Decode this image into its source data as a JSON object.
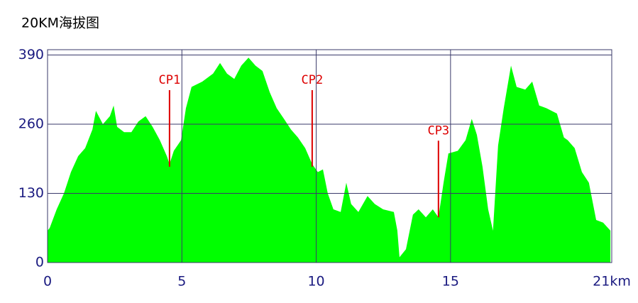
{
  "chart_data": {
    "type": "area",
    "title": "20KM海拔图",
    "x": [
      0,
      0.08,
      0.34,
      0.61,
      0.87,
      1.14,
      1.4,
      1.67,
      1.8,
      2.06,
      2.32,
      2.46,
      2.59,
      2.85,
      3.12,
      3.38,
      3.65,
      3.91,
      4.18,
      4.44,
      4.54,
      4.7,
      4.97,
      5.15,
      5.36,
      5.76,
      6.16,
      6.42,
      6.68,
      6.95,
      7.21,
      7.48,
      7.74,
      8.0,
      8.27,
      8.53,
      8.8,
      9.06,
      9.32,
      9.59,
      9.85,
      10.06,
      10.25,
      10.43,
      10.64,
      10.91,
      11.12,
      11.3,
      11.57,
      11.91,
      12.18,
      12.49,
      12.89,
      13.02,
      13.1,
      13.34,
      13.6,
      13.81,
      14.08,
      14.34,
      14.55,
      14.74,
      14.92,
      15.27,
      15.56,
      15.79,
      15.98,
      16.19,
      16.4,
      16.58,
      16.77,
      16.98,
      17.25,
      17.46,
      17.78,
      18.04,
      18.3,
      18.57,
      18.96,
      19.22,
      19.36,
      19.62,
      19.89,
      20.15,
      20.42,
      20.68,
      20.95
    ],
    "values": [
      60,
      65,
      100,
      130,
      170,
      200,
      215,
      250,
      285,
      260,
      275,
      295,
      255,
      245,
      245,
      265,
      275,
      255,
      230,
      200,
      185,
      210,
      230,
      290,
      330,
      340,
      355,
      375,
      355,
      345,
      370,
      385,
      370,
      360,
      320,
      290,
      270,
      250,
      235,
      215,
      185,
      170,
      175,
      130,
      100,
      95,
      150,
      110,
      95,
      125,
      110,
      100,
      95,
      60,
      10,
      25,
      90,
      100,
      85,
      100,
      85,
      150,
      205,
      210,
      230,
      270,
      240,
      180,
      100,
      60,
      220,
      290,
      370,
      330,
      325,
      340,
      295,
      290,
      280,
      235,
      230,
      215,
      170,
      150,
      80,
      75,
      60
    ],
    "color": "#00ff00",
    "xlim": [
      0,
      21
    ],
    "xticks": [
      0,
      5,
      10,
      15,
      {
        "value": 21,
        "label": "21km"
      }
    ],
    "ylim": [
      0,
      400
    ],
    "yticks": [
      0,
      130,
      260,
      390
    ],
    "grid": true,
    "annotations": [
      {
        "label": "CP1",
        "x": 4.54,
        "y": 180,
        "color": "#dd0000"
      },
      {
        "label": "CP2",
        "x": 9.85,
        "y": 180,
        "color": "#dd0000"
      },
      {
        "label": "CP3",
        "x": 14.55,
        "y": 85,
        "color": "#dd0000"
      }
    ]
  }
}
